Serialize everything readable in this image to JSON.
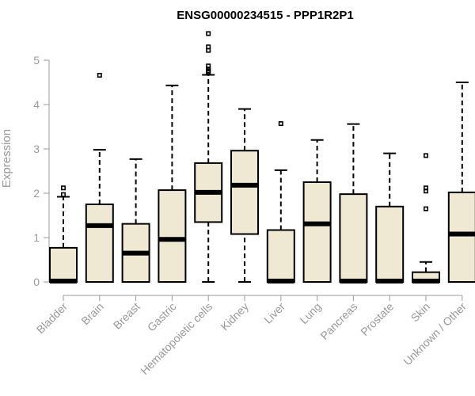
{
  "chart_data": {
    "type": "boxplot",
    "title": "ENSG00000234515 - PPP1R2P1",
    "ylabel": "Expression",
    "xlabel": "",
    "ylim": [
      0,
      5.6
    ],
    "yticks": [
      0,
      1,
      2,
      3,
      4,
      5
    ],
    "grid": false,
    "box_color": "#efe8d3",
    "axis_color": "#999999",
    "categories": [
      "Bladder",
      "Brain",
      "Breast",
      "Gastric",
      "Hematopoietic cells",
      "Kidney",
      "Liver",
      "Lung",
      "Pancreas",
      "Prostate",
      "Skin",
      "Unknown / Other"
    ],
    "boxes": [
      {
        "category": "Bladder",
        "min": 0,
        "q1": 0,
        "median": 0.02,
        "q3": 0.77,
        "max": 1.92,
        "outliers": [
          2.12,
          1.97
        ]
      },
      {
        "category": "Brain",
        "min": 0,
        "q1": 0,
        "median": 1.27,
        "q3": 1.75,
        "max": 2.98,
        "outliers": [
          4.66
        ]
      },
      {
        "category": "Breast",
        "min": 0,
        "q1": 0,
        "median": 0.65,
        "q3": 1.31,
        "max": 2.77,
        "outliers": []
      },
      {
        "category": "Gastric",
        "min": 0,
        "q1": 0,
        "median": 0.96,
        "q3": 2.07,
        "max": 4.43,
        "outliers": []
      },
      {
        "category": "Hematopoietic cells",
        "min": 0,
        "q1": 1.35,
        "median": 2.02,
        "q3": 2.68,
        "max": 4.67,
        "outliers": [
          5.6,
          5.3,
          5.22,
          4.87,
          4.8,
          4.76,
          4.73
        ]
      },
      {
        "category": "Kidney",
        "min": 0,
        "q1": 1.08,
        "median": 2.18,
        "q3": 2.96,
        "max": 3.9,
        "outliers": []
      },
      {
        "category": "Liver",
        "min": 0,
        "q1": 0,
        "median": 0.02,
        "q3": 1.17,
        "max": 2.52,
        "outliers": [
          3.57
        ]
      },
      {
        "category": "Lung",
        "min": 0,
        "q1": 0,
        "median": 1.31,
        "q3": 2.25,
        "max": 3.2,
        "outliers": []
      },
      {
        "category": "Pancreas",
        "min": 0,
        "q1": 0,
        "median": 0.02,
        "q3": 1.98,
        "max": 3.56,
        "outliers": []
      },
      {
        "category": "Prostate",
        "min": 0,
        "q1": 0,
        "median": 0.02,
        "q3": 1.7,
        "max": 2.9,
        "outliers": []
      },
      {
        "category": "Skin",
        "min": 0,
        "q1": 0,
        "median": 0.02,
        "q3": 0.22,
        "max": 0.45,
        "outliers": [
          2.85,
          2.12,
          2.05,
          1.65
        ]
      },
      {
        "category": "Unknown / Other",
        "min": 0,
        "q1": 0,
        "median": 1.08,
        "q3": 2.02,
        "max": 4.5,
        "outliers": []
      }
    ]
  }
}
